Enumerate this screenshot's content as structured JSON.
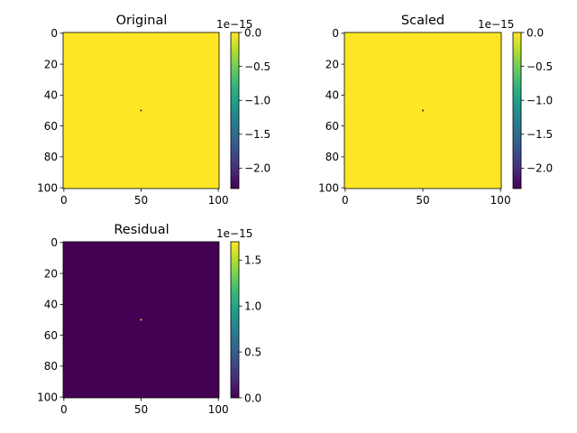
{
  "colormap": {
    "name": "viridis",
    "stops": [
      "#440154",
      "#482878",
      "#3e4989",
      "#31688e",
      "#26828e",
      "#1f9e89",
      "#35b779",
      "#6ece58",
      "#b5de2b",
      "#fde725"
    ]
  },
  "chart_data": [
    {
      "type": "heatmap",
      "title": "Original",
      "x_ticks": [
        "0",
        "50",
        "100"
      ],
      "y_ticks": [
        "0",
        "20",
        "40",
        "60",
        "80",
        "100"
      ],
      "xlim": [
        -0.5,
        100.5
      ],
      "ylim": [
        100.5,
        -0.5
      ],
      "background_value": 0.0,
      "point": {
        "x": 50,
        "y": 50,
        "value": -2.3e-15
      },
      "colorbar": {
        "min": -2.3e-15,
        "max": 0.0,
        "offset_text": "1e−15",
        "tick_values": [
          0.0,
          -5e-16,
          -1e-15,
          -1.5e-15,
          -2e-15
        ],
        "tick_labels": [
          "0.0",
          "−0.5",
          "−1.0",
          "−1.5",
          "−2.0"
        ]
      }
    },
    {
      "type": "heatmap",
      "title": "Scaled",
      "x_ticks": [
        "0",
        "50",
        "100"
      ],
      "y_ticks": [
        "0",
        "20",
        "40",
        "60",
        "80",
        "100"
      ],
      "xlim": [
        -0.5,
        100.5
      ],
      "ylim": [
        100.5,
        -0.5
      ],
      "background_value": 0.0,
      "point": {
        "x": 50,
        "y": 50,
        "value": -2.3e-15
      },
      "colorbar": {
        "min": -2.3e-15,
        "max": 0.0,
        "offset_text": "1e−15",
        "tick_values": [
          0.0,
          -5e-16,
          -1e-15,
          -1.5e-15,
          -2e-15
        ],
        "tick_labels": [
          "0.0",
          "−0.5",
          "−1.0",
          "−1.5",
          "−2.0"
        ]
      }
    },
    {
      "type": "heatmap",
      "title": "Residual",
      "x_ticks": [
        "0",
        "50",
        "100"
      ],
      "y_ticks": [
        "0",
        "20",
        "40",
        "60",
        "80",
        "100"
      ],
      "xlim": [
        -0.5,
        100.5
      ],
      "ylim": [
        100.5,
        -0.5
      ],
      "background_value": 0.0,
      "point": {
        "x": 50,
        "y": 50,
        "value": 1.7e-15
      },
      "colorbar": {
        "min": 0.0,
        "max": 1.7e-15,
        "offset_text": "1e−15",
        "tick_values": [
          0.0,
          5e-16,
          1e-15,
          1.5e-15
        ],
        "tick_labels": [
          "0.0",
          "0.5",
          "1.0",
          "1.5"
        ]
      }
    }
  ]
}
